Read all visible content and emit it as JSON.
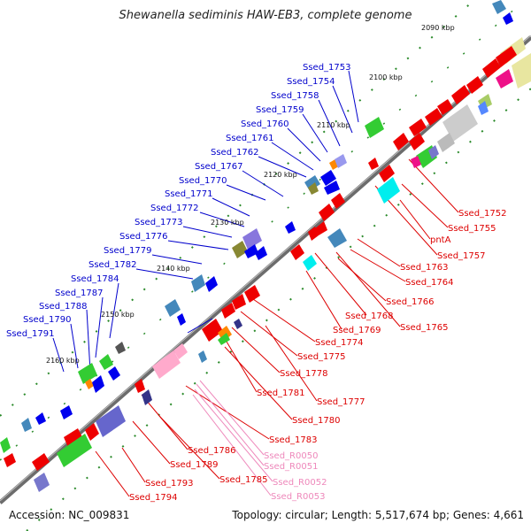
{
  "title": "Shewanella sediminis HAW-EB3, complete genome",
  "footer": {
    "accession": "Accession: NC_009831",
    "summary": "Topology: circular; Length: 5,517,674 bp; Genes: 4,661"
  },
  "colors": {
    "forward_label": "#0000cc",
    "reverse_label": "#dd0000",
    "rna_label": "#ee88bb",
    "backbone": "#777777",
    "tick": "#2a8a2a"
  },
  "kbp_ticks": [
    "2090 kbp",
    "2100 kbp",
    "2110 kbp",
    "2120 kbp",
    "2130 kbp",
    "2140 kbp",
    "2150 kbp",
    "2160 kbp"
  ],
  "forward_labels": [
    "Ssed_1753",
    "Ssed_1754",
    "Ssed_1758",
    "Ssed_1759",
    "Ssed_1760",
    "Ssed_1761",
    "Ssed_1762",
    "Ssed_1767",
    "Ssed_1770",
    "Ssed_1771",
    "Ssed_1772",
    "Ssed_1773",
    "Ssed_1776",
    "Ssed_1779",
    "Ssed_1782",
    "Ssed_1784",
    "Ssed_1787",
    "Ssed_1788",
    "Ssed_1790",
    "Ssed_1791"
  ],
  "reverse_labels": [
    "Ssed_1752",
    "Ssed_1755",
    "pntA",
    "Ssed_1757",
    "Ssed_1763",
    "Ssed_1764",
    "Ssed_1766",
    "Ssed_1768",
    "Ssed_1765",
    "Ssed_1769",
    "Ssed_1774",
    "Ssed_1775",
    "Ssed_1778",
    "Ssed_1777",
    "Ssed_1781",
    "Ssed_1780",
    "Ssed_1783",
    "Ssed_1786",
    "Ssed_1789",
    "Ssed_1785",
    "Ssed_1793",
    "Ssed_1794"
  ],
  "rna_labels": [
    "Ssed_R0050",
    "Ssed_R0051",
    "Ssed_R0052",
    "Ssed_R0053"
  ]
}
